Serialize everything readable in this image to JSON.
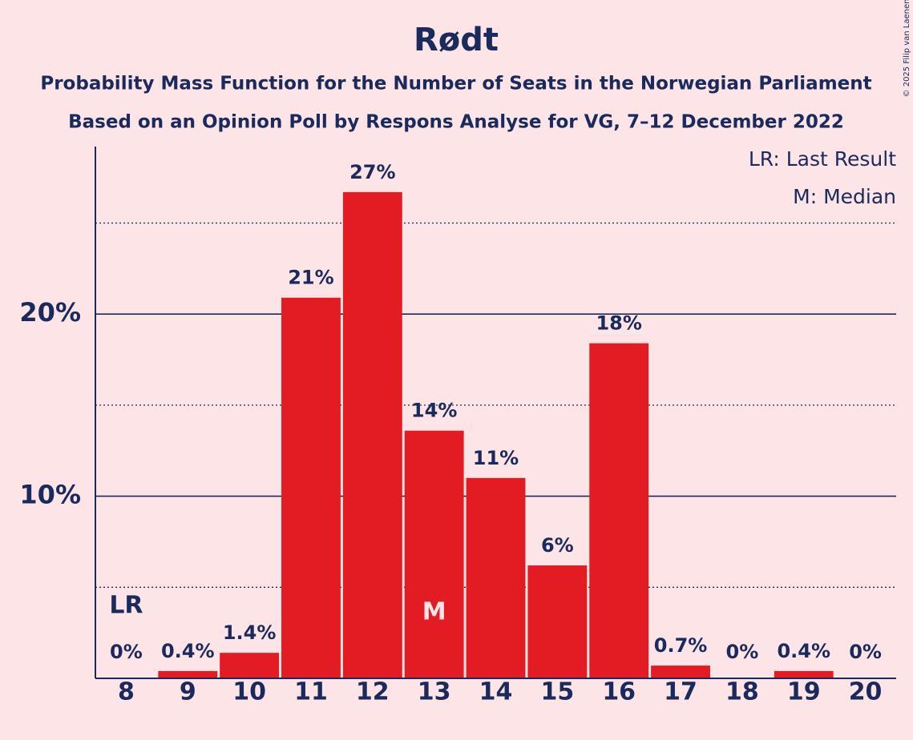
{
  "chart_data": {
    "type": "bar",
    "title": "Rødt",
    "subtitle": [
      "Probability Mass Function for the Number of Seats in the Norwegian Parliament",
      "Based on an Opinion Poll by Respons Analyse for VG, 7–12 December 2022"
    ],
    "categories": [
      "8",
      "9",
      "10",
      "11",
      "12",
      "13",
      "14",
      "15",
      "16",
      "17",
      "18",
      "19",
      "20"
    ],
    "values": [
      0,
      0.4,
      1.4,
      20.9,
      26.7,
      13.6,
      11.0,
      6.2,
      18.4,
      0.7,
      0,
      0.4,
      0
    ],
    "value_labels": [
      "0%",
      "0.4%",
      "1.4%",
      "21%",
      "27%",
      "14%",
      "11%",
      "6%",
      "18%",
      "0.7%",
      "0%",
      "0.4%",
      "0%"
    ],
    "color": "#e31b23",
    "ylim": [
      0,
      29.2
    ],
    "yticks": [
      {
        "value": 10,
        "label": "10%"
      },
      {
        "value": 20,
        "label": "20%"
      }
    ],
    "minor_yticks": [
      5,
      15,
      25
    ],
    "grid": true,
    "annotations": [
      {
        "text": "LR",
        "category": "8"
      },
      {
        "text": "M",
        "category": "13"
      }
    ],
    "legend": [
      "LR: Last Result",
      "M: Median"
    ],
    "credit": "© 2025 Filip van Laenen"
  }
}
